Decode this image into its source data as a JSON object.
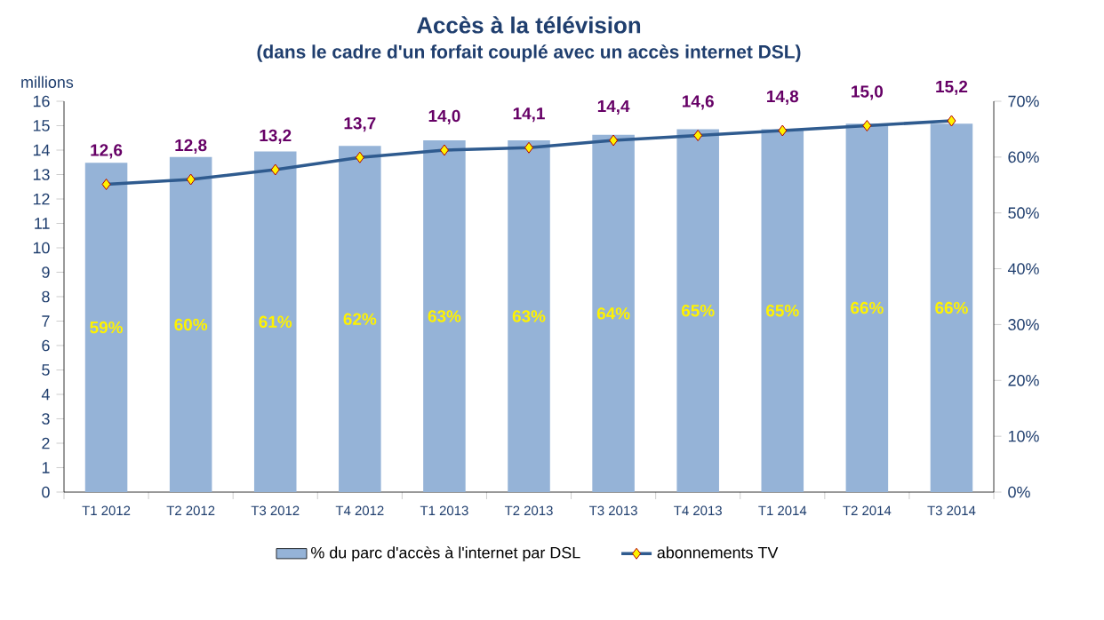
{
  "chart_data": {
    "type": "bar",
    "title": "Accès à la télévision",
    "subtitle": "(dans le cadre d'un forfait couplé avec un accès internet DSL)",
    "ylabel": "millions",
    "categories": [
      "T1 2012",
      "T2 2012",
      "T3 2012",
      "T4 2012",
      "T1 2013",
      "T2 2013",
      "T3 2013",
      "T4 2013",
      "T1 2014",
      "T2 2014",
      "T3 2014"
    ],
    "ylim": [
      0,
      16
    ],
    "yticks": [
      0,
      1,
      2,
      3,
      4,
      5,
      6,
      7,
      8,
      9,
      10,
      11,
      12,
      13,
      14,
      15,
      16
    ],
    "y2lim": [
      0,
      70
    ],
    "y2ticks": [
      {
        "value": 0,
        "label": "0%"
      },
      {
        "value": 10,
        "label": "10%"
      },
      {
        "value": 20,
        "label": "20%"
      },
      {
        "value": 30,
        "label": "30%"
      },
      {
        "value": 40,
        "label": "40%"
      },
      {
        "value": 50,
        "label": "50%"
      },
      {
        "value": 60,
        "label": "60%"
      },
      {
        "value": 70,
        "label": "70%"
      }
    ],
    "legend": "bottom",
    "series": [
      {
        "name": "% du parc d'accès à l'internet par DSL",
        "axis": "y2",
        "color": "#95b3d7",
        "values": [
          59,
          60,
          61,
          62,
          63,
          63,
          64,
          65,
          65,
          66,
          66
        ],
        "value_labels": [
          "59%",
          "60%",
          "61%",
          "62%",
          "63%",
          "63%",
          "64%",
          "65%",
          "65%",
          "66%",
          "66%"
        ]
      },
      {
        "name": "abonnements TV",
        "type": "line",
        "axis": "y",
        "color": "#2f5b8f",
        "marker": "diamond",
        "values": [
          12.6,
          12.8,
          13.2,
          13.7,
          14.0,
          14.1,
          14.4,
          14.6,
          14.8,
          15.0,
          15.2
        ],
        "value_labels": [
          "12,6",
          "12,8",
          "13,2",
          "13,7",
          "14,0",
          "14,1",
          "14,4",
          "14,6",
          "14,8",
          "15,0",
          "15,2"
        ]
      }
    ]
  }
}
